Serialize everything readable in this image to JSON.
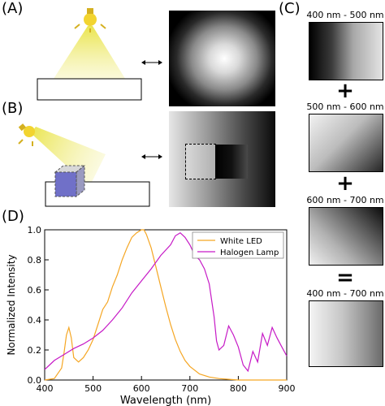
{
  "panels": {
    "a": "(A)",
    "b": "(B)",
    "c": "(C)",
    "d": "(D)"
  },
  "filters": {
    "range1": "400 nm - 500 nm",
    "op1": "+",
    "range2": "500 nm - 600 nm",
    "op2": "+",
    "range3": "600 nm - 700 nm",
    "op3": "=",
    "range_total": "400 nm - 700 nm"
  },
  "colors": {
    "white_led": "#f5a623",
    "halogen": "#c61ac6",
    "lamp_glow": "#e8e23a"
  },
  "chart_data": {
    "type": "line",
    "xlabel": "Wavelength (nm)",
    "ylabel": "Normalized Intensity",
    "xlim": [
      400,
      900
    ],
    "ylim": [
      0,
      1.0
    ],
    "xticks": [
      400,
      500,
      600,
      700,
      800,
      900
    ],
    "yticks": [
      0.0,
      0.2,
      0.4,
      0.6,
      0.8,
      1.0
    ],
    "legend_position": "top-right",
    "series": [
      {
        "name": "White LED",
        "x": [
          400,
          420,
          435,
          440,
          445,
          450,
          455,
          460,
          470,
          480,
          490,
          500,
          510,
          520,
          530,
          540,
          550,
          560,
          570,
          580,
          590,
          600,
          605,
          610,
          620,
          630,
          640,
          650,
          660,
          670,
          680,
          690,
          700,
          720,
          740,
          760,
          780,
          800,
          850,
          900
        ],
        "y": [
          0.0,
          0.01,
          0.08,
          0.18,
          0.3,
          0.35,
          0.28,
          0.15,
          0.12,
          0.15,
          0.2,
          0.27,
          0.37,
          0.47,
          0.52,
          0.62,
          0.7,
          0.8,
          0.88,
          0.95,
          0.98,
          1.0,
          1.0,
          0.97,
          0.88,
          0.75,
          0.62,
          0.49,
          0.37,
          0.27,
          0.19,
          0.13,
          0.09,
          0.04,
          0.02,
          0.01,
          0.005,
          0.0,
          0.0,
          0.0
        ]
      },
      {
        "name": "Halogen Lamp",
        "x": [
          400,
          410,
          420,
          440,
          460,
          480,
          500,
          520,
          540,
          560,
          580,
          600,
          620,
          640,
          660,
          670,
          680,
          690,
          700,
          710,
          720,
          730,
          740,
          750,
          755,
          760,
          770,
          780,
          790,
          800,
          810,
          820,
          830,
          840,
          850,
          860,
          870,
          880,
          890,
          900
        ],
        "y": [
          0.07,
          0.1,
          0.13,
          0.17,
          0.21,
          0.24,
          0.28,
          0.33,
          0.4,
          0.48,
          0.58,
          0.66,
          0.74,
          0.83,
          0.9,
          0.96,
          0.98,
          0.95,
          0.9,
          0.83,
          0.8,
          0.74,
          0.64,
          0.42,
          0.26,
          0.2,
          0.23,
          0.36,
          0.3,
          0.22,
          0.1,
          0.06,
          0.19,
          0.12,
          0.31,
          0.23,
          0.35,
          0.28,
          0.22,
          0.16
        ]
      }
    ]
  }
}
